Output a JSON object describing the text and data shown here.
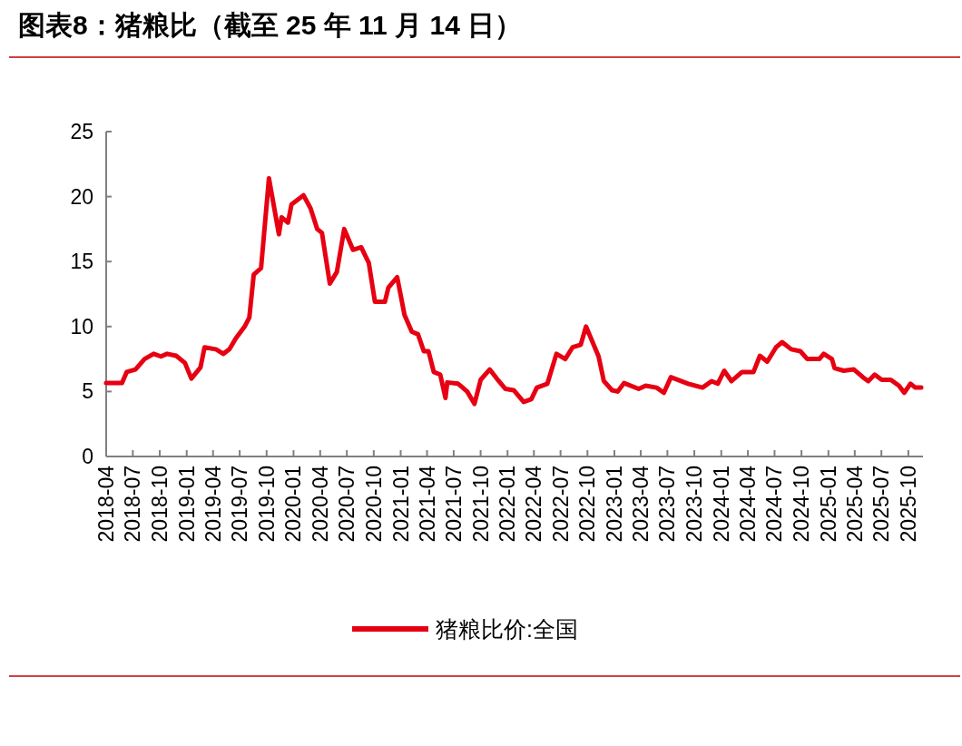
{
  "chart_data": {
    "type": "line",
    "title": "图表8：猪粮比（截至 25 年 11 月 14 日）",
    "x": [
      "2018-04-01",
      "2018-05-25",
      "2018-06-10",
      "2018-07-10",
      "2018-08-10",
      "2018-09-10",
      "2018-10-05",
      "2018-10-26",
      "2018-11-26",
      "2018-12-26",
      "2019-01-17",
      "2019-02-17",
      "2019-03-03",
      "2019-04-11",
      "2019-05-06",
      "2019-05-27",
      "2019-06-18",
      "2019-07-18",
      "2019-08-03",
      "2019-08-18",
      "2019-09-12",
      "2019-10-09",
      "2019-11-12",
      "2019-11-21",
      "2019-12-13",
      "2019-12-25",
      "2020-02-04",
      "2020-02-28",
      "2020-03-22",
      "2020-04-07",
      "2020-05-04",
      "2020-05-28",
      "2020-06-22",
      "2020-07-22",
      "2020-08-19",
      "2020-09-14",
      "2020-10-05",
      "2020-11-08",
      "2020-11-20",
      "2020-12-20",
      "2021-01-14",
      "2021-02-08",
      "2021-03-01",
      "2021-03-21",
      "2021-04-06",
      "2021-04-24",
      "2021-05-16",
      "2021-06-03",
      "2021-06-09",
      "2021-07-16",
      "2021-08-16",
      "2021-09-10",
      "2021-10-01",
      "2021-11-01",
      "2021-11-25",
      "2021-12-25",
      "2022-01-22",
      "2022-02-25",
      "2022-03-23",
      "2022-04-11",
      "2022-05-17",
      "2022-06-17",
      "2022-07-17",
      "2022-08-11",
      "2022-09-08",
      "2022-09-26",
      "2022-11-08",
      "2022-11-26",
      "2022-12-24",
      "2023-01-12",
      "2023-02-03",
      "2023-03-25",
      "2023-04-18",
      "2023-05-25",
      "2023-06-19",
      "2023-07-13",
      "2023-09-10",
      "2023-10-29",
      "2023-11-29",
      "2023-12-20",
      "2024-01-11",
      "2024-02-05",
      "2024-03-12",
      "2024-04-20",
      "2024-05-12",
      "2024-06-06",
      "2024-07-06",
      "2024-07-27",
      "2024-08-27",
      "2024-09-27",
      "2024-10-21",
      "2024-12-01",
      "2024-12-16",
      "2025-01-13",
      "2025-01-22",
      "2025-02-22",
      "2025-03-29",
      "2025-04-29",
      "2025-05-17",
      "2025-06-08",
      "2025-07-02",
      "2025-08-02",
      "2025-08-30",
      "2025-09-17",
      "2025-10-08",
      "2025-10-25",
      "2025-11-14"
    ],
    "series": [
      {
        "name": "猪粮比价:全国",
        "color": "#e60012",
        "values": [
          5.65,
          5.65,
          6.5,
          6.7,
          7.5,
          7.9,
          7.7,
          7.9,
          7.75,
          7.2,
          6.0,
          6.85,
          8.4,
          8.25,
          7.9,
          8.25,
          9.1,
          10.0,
          10.7,
          14.0,
          14.5,
          21.4,
          17.1,
          18.4,
          18.0,
          19.4,
          20.1,
          19.1,
          17.5,
          17.2,
          13.3,
          14.2,
          17.5,
          15.9,
          16.1,
          14.9,
          11.9,
          11.9,
          13.0,
          13.8,
          10.9,
          9.6,
          9.4,
          8.1,
          8.1,
          6.5,
          6.3,
          4.5,
          5.7,
          5.6,
          5.0,
          4.05,
          5.9,
          6.7,
          6.0,
          5.2,
          5.1,
          4.2,
          4.4,
          5.3,
          5.6,
          7.9,
          7.5,
          8.4,
          8.6,
          10.0,
          7.7,
          5.8,
          5.1,
          5.0,
          5.65,
          5.2,
          5.45,
          5.3,
          4.9,
          6.1,
          5.6,
          5.3,
          5.8,
          5.6,
          6.6,
          5.8,
          6.5,
          6.5,
          7.75,
          7.3,
          8.4,
          8.8,
          8.25,
          8.1,
          7.5,
          7.5,
          7.9,
          7.5,
          6.8,
          6.6,
          6.7,
          6.1,
          5.8,
          6.3,
          5.9,
          5.9,
          5.45,
          4.9,
          5.6,
          5.3,
          5.3
        ]
      }
    ],
    "xlim": [
      "2018-04-01",
      "2025-11-20"
    ],
    "xticks": [
      {
        "value": "2018-04-01",
        "label": "2018-04"
      },
      {
        "value": "2018-07-01",
        "label": "2018-07"
      },
      {
        "value": "2018-10-01",
        "label": "2018-10"
      },
      {
        "value": "2019-01-01",
        "label": "2019-01"
      },
      {
        "value": "2019-04-01",
        "label": "2019-04"
      },
      {
        "value": "2019-07-01",
        "label": "2019-07"
      },
      {
        "value": "2019-10-01",
        "label": "2019-10"
      },
      {
        "value": "2020-01-01",
        "label": "2020-01"
      },
      {
        "value": "2020-04-01",
        "label": "2020-04"
      },
      {
        "value": "2020-07-01",
        "label": "2020-07"
      },
      {
        "value": "2020-10-01",
        "label": "2020-10"
      },
      {
        "value": "2021-01-01",
        "label": "2021-01"
      },
      {
        "value": "2021-04-01",
        "label": "2021-04"
      },
      {
        "value": "2021-07-01",
        "label": "2021-07"
      },
      {
        "value": "2021-10-01",
        "label": "2021-10"
      },
      {
        "value": "2022-01-01",
        "label": "2022-01"
      },
      {
        "value": "2022-04-01",
        "label": "2022-04"
      },
      {
        "value": "2022-07-01",
        "label": "2022-07"
      },
      {
        "value": "2022-10-01",
        "label": "2022-10"
      },
      {
        "value": "2023-01-01",
        "label": "2023-01"
      },
      {
        "value": "2023-04-01",
        "label": "2023-04"
      },
      {
        "value": "2023-07-01",
        "label": "2023-07"
      },
      {
        "value": "2023-10-01",
        "label": "2023-10"
      },
      {
        "value": "2024-01-01",
        "label": "2024-01"
      },
      {
        "value": "2024-04-01",
        "label": "2024-04"
      },
      {
        "value": "2024-07-01",
        "label": "2024-07"
      },
      {
        "value": "2024-10-01",
        "label": "2024-10"
      },
      {
        "value": "2025-01-01",
        "label": "2025-01"
      },
      {
        "value": "2025-04-01",
        "label": "2025-04"
      },
      {
        "value": "2025-07-01",
        "label": "2025-07"
      },
      {
        "value": "2025-10-01",
        "label": "2025-10"
      }
    ],
    "ylim": [
      0,
      25
    ],
    "yticks": [
      0,
      5,
      10,
      15,
      20,
      25
    ],
    "grid": false,
    "legend": "bottom",
    "marker": "none",
    "line_style": "solid"
  }
}
